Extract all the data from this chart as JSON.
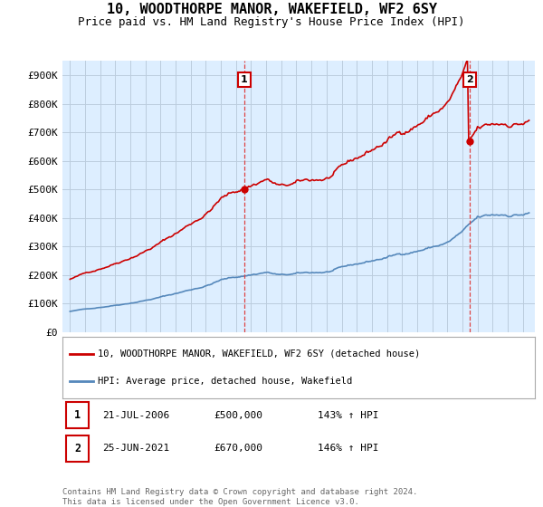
{
  "title": "10, WOODTHORPE MANOR, WAKEFIELD, WF2 6SY",
  "subtitle": "Price paid vs. HM Land Registry's House Price Index (HPI)",
  "title_fontsize": 11,
  "subtitle_fontsize": 9,
  "background_color": "#ffffff",
  "plot_bg_color": "#ddeeff",
  "grid_color": "#bbccdd",
  "ylim": [
    0,
    950000
  ],
  "yticks": [
    0,
    100000,
    200000,
    300000,
    400000,
    500000,
    600000,
    700000,
    800000,
    900000
  ],
  "ytick_labels": [
    "£0",
    "£100K",
    "£200K",
    "£300K",
    "£400K",
    "£500K",
    "£600K",
    "£700K",
    "£800K",
    "£900K"
  ],
  "sale1_year": 2006.55,
  "sale1_price": 500000,
  "sale2_year": 2021.48,
  "sale2_price": 670000,
  "red_color": "#cc0000",
  "blue_color": "#5588bb",
  "vline_color": "#dd4444",
  "legend1_text": "10, WOODTHORPE MANOR, WAKEFIELD, WF2 6SY (detached house)",
  "legend2_text": "HPI: Average price, detached house, Wakefield",
  "annotation1": [
    "1",
    "21-JUL-2006",
    "£500,000",
    "143% ↑ HPI"
  ],
  "annotation2": [
    "2",
    "25-JUN-2021",
    "£670,000",
    "146% ↑ HPI"
  ],
  "footer": "Contains HM Land Registry data © Crown copyright and database right 2024.\nThis data is licensed under the Open Government Licence v3.0.",
  "xlim_left": 1994.5,
  "xlim_right": 2025.8
}
